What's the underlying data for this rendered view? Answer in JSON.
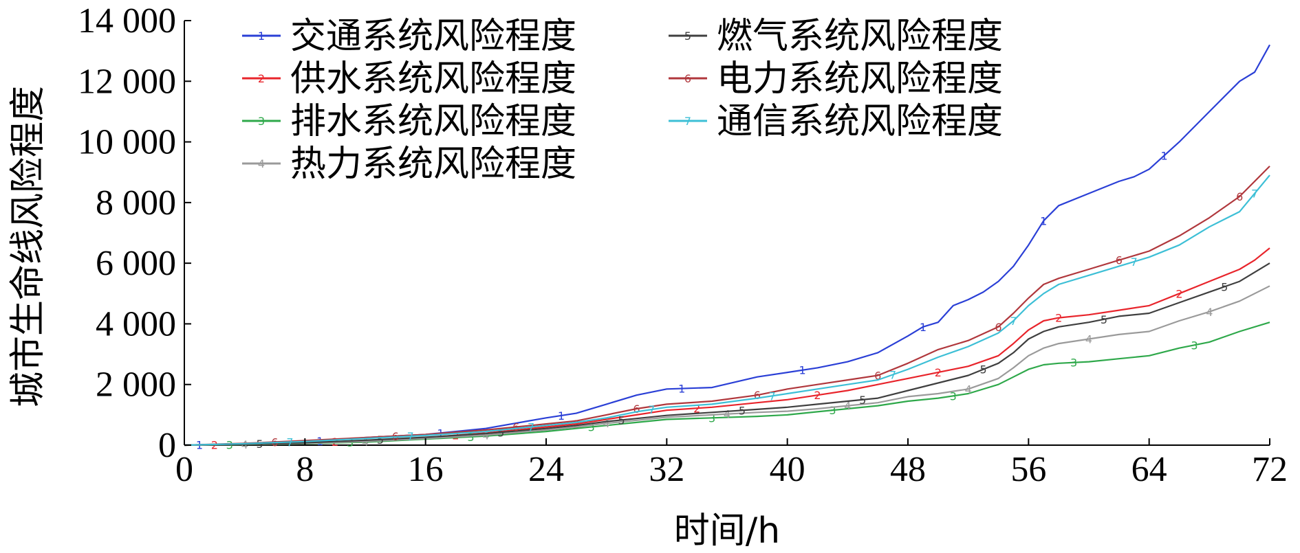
{
  "chart_data": {
    "type": "line",
    "xlabel": "时间/h",
    "ylabel": "城市生命线风险程度",
    "xlim": [
      0,
      72
    ],
    "ylim": [
      0,
      14000
    ],
    "x_ticks": [
      "0",
      "8",
      "16",
      "24",
      "32",
      "40",
      "48",
      "56",
      "64",
      "72"
    ],
    "y_ticks": [
      "0",
      "2 000",
      "4 000",
      "6 000",
      "8 000",
      "10 000",
      "12 000",
      "14 000"
    ],
    "grid": false,
    "legend_position": "top-left",
    "series": [
      {
        "name": "交通系统风险程度",
        "marker": "1",
        "color": "#2a3fd6",
        "x": [
          0,
          4,
          8,
          12,
          16,
          20,
          24,
          26,
          28,
          30,
          32,
          35,
          38,
          40,
          42,
          44,
          46,
          48,
          49,
          50,
          51,
          52,
          53,
          54,
          55,
          56,
          57,
          58,
          60,
          62,
          63,
          64,
          66,
          68,
          70,
          71,
          72
        ],
        "y": [
          0,
          50,
          100,
          250,
          350,
          550,
          900,
          1050,
          1350,
          1650,
          1850,
          1900,
          2250,
          2400,
          2550,
          2750,
          3050,
          3600,
          3900,
          4050,
          4600,
          4800,
          5050,
          5400,
          5900,
          6600,
          7400,
          7900,
          8300,
          8700,
          8850,
          9100,
          10000,
          11000,
          12000,
          12300,
          13200
        ]
      },
      {
        "name": "供水系统风险程度",
        "marker": "2",
        "color": "#e8242b",
        "x": [
          0,
          4,
          8,
          12,
          16,
          20,
          24,
          26,
          28,
          30,
          32,
          35,
          38,
          40,
          42,
          44,
          46,
          48,
          50,
          52,
          54,
          55,
          56,
          57,
          58,
          60,
          62,
          64,
          66,
          68,
          70,
          71,
          72
        ],
        "y": [
          0,
          30,
          70,
          150,
          250,
          400,
          600,
          700,
          850,
          1000,
          1150,
          1250,
          1400,
          1500,
          1650,
          1800,
          2000,
          2200,
          2400,
          2600,
          2950,
          3350,
          3800,
          4100,
          4200,
          4300,
          4450,
          4600,
          5000,
          5400,
          5800,
          6100,
          6500
        ]
      },
      {
        "name": "排水系统风险程度",
        "marker": "3",
        "color": "#2ea84a",
        "x": [
          0,
          4,
          8,
          12,
          16,
          20,
          24,
          26,
          28,
          30,
          32,
          35,
          38,
          40,
          42,
          44,
          46,
          48,
          50,
          52,
          54,
          55,
          56,
          57,
          58,
          60,
          62,
          64,
          66,
          68,
          70,
          72
        ],
        "y": [
          0,
          20,
          50,
          100,
          200,
          300,
          450,
          550,
          650,
          750,
          850,
          900,
          950,
          1000,
          1100,
          1200,
          1300,
          1450,
          1550,
          1700,
          2000,
          2250,
          2500,
          2650,
          2700,
          2750,
          2850,
          2950,
          3200,
          3400,
          3750,
          4050
        ]
      },
      {
        "name": "热力系统风险程度",
        "marker": "4",
        "color": "#9a9a9a",
        "x": [
          0,
          4,
          8,
          12,
          16,
          20,
          24,
          26,
          28,
          30,
          32,
          35,
          38,
          40,
          42,
          44,
          46,
          48,
          50,
          52,
          54,
          55,
          56,
          57,
          58,
          60,
          62,
          64,
          66,
          68,
          70,
          72
        ],
        "y": [
          0,
          25,
          60,
          120,
          220,
          330,
          500,
          600,
          720,
          820,
          920,
          1000,
          1080,
          1120,
          1200,
          1300,
          1400,
          1600,
          1700,
          1850,
          2200,
          2550,
          2950,
          3200,
          3350,
          3500,
          3650,
          3750,
          4100,
          4400,
          4750,
          5250
        ]
      },
      {
        "name": "燃气系统风险程度",
        "marker": "5",
        "color": "#3f3f3f",
        "x": [
          0,
          4,
          8,
          12,
          16,
          20,
          24,
          26,
          28,
          30,
          32,
          35,
          38,
          40,
          42,
          44,
          46,
          48,
          50,
          52,
          54,
          55,
          56,
          57,
          58,
          60,
          62,
          64,
          66,
          68,
          70,
          72
        ],
        "y": [
          0,
          30,
          80,
          160,
          260,
          380,
          550,
          650,
          780,
          880,
          980,
          1080,
          1180,
          1250,
          1350,
          1450,
          1550,
          1800,
          2050,
          2300,
          2700,
          3050,
          3500,
          3750,
          3900,
          4050,
          4250,
          4350,
          4700,
          5050,
          5400,
          6000
        ]
      },
      {
        "name": "电力系统风险程度",
        "marker": "6",
        "color": "#b0373c",
        "x": [
          0,
          4,
          8,
          12,
          16,
          20,
          24,
          26,
          28,
          30,
          32,
          35,
          38,
          40,
          42,
          44,
          46,
          48,
          50,
          52,
          54,
          55,
          56,
          57,
          58,
          60,
          62,
          64,
          66,
          68,
          70,
          72
        ],
        "y": [
          0,
          60,
          150,
          250,
          350,
          500,
          700,
          800,
          1000,
          1200,
          1350,
          1450,
          1650,
          1850,
          2000,
          2150,
          2300,
          2700,
          3150,
          3450,
          3900,
          4350,
          4850,
          5300,
          5500,
          5800,
          6100,
          6400,
          6900,
          7500,
          8200,
          9200
        ]
      },
      {
        "name": "通信系统风险程度",
        "marker": "7",
        "color": "#3cbfd6",
        "x": [
          0,
          4,
          8,
          12,
          16,
          20,
          24,
          26,
          28,
          30,
          32,
          35,
          38,
          40,
          42,
          44,
          46,
          48,
          50,
          52,
          54,
          55,
          56,
          57,
          58,
          60,
          62,
          64,
          66,
          68,
          70,
          72
        ],
        "y": [
          0,
          50,
          120,
          220,
          320,
          450,
          650,
          750,
          900,
          1100,
          1250,
          1350,
          1550,
          1700,
          1850,
          2000,
          2150,
          2500,
          2900,
          3250,
          3700,
          4100,
          4600,
          5000,
          5300,
          5600,
          5900,
          6200,
          6600,
          7200,
          7700,
          8900
        ]
      }
    ]
  }
}
